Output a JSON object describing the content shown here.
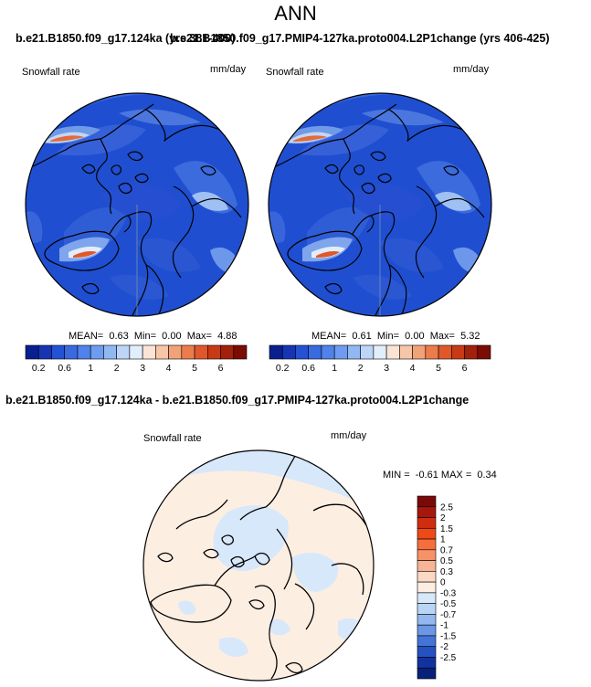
{
  "main_title": "ANN",
  "panel_titles": {
    "left": "b.e21.B1850.f09_g17.124ka (yrs 381-400)",
    "right": "b.e21.B1850.f09_g17.PMIP4-127ka.proto004.L2P1change (yrs 406-425)",
    "diff": "b.e21.B1850.f09_g17.124ka - b.e21.B1850.f09_g17.PMIP4-127ka.proto004.L2P1change"
  },
  "chart_data": [
    {
      "type": "heatmap",
      "projection": "north-polar-stereographic",
      "variable": "Snowfall rate",
      "units": "mm/day",
      "stats": {
        "mean_label": "MEAN=",
        "mean": "0.63",
        "min_label": "Min=",
        "min": "0.00",
        "max_label": "Max=",
        "max": "4.88"
      },
      "colorbar": {
        "levels": [
          0.1,
          0.2,
          0.4,
          0.6,
          0.8,
          1,
          1.5,
          2,
          2.5,
          3,
          3.5,
          4,
          4.5,
          5,
          5.5,
          6
        ],
        "tick_labels": [
          "0.2",
          "0.6",
          "1",
          "2",
          "3",
          "4",
          "5",
          "6"
        ],
        "colors": [
          "#0a1f8f",
          "#1535b5",
          "#2452d4",
          "#3a6ae0",
          "#4f82ea",
          "#6d9cf0",
          "#92b8f4",
          "#bcd5f8",
          "#e2eefb",
          "#fbe4d6",
          "#f7c6a8",
          "#f2a178",
          "#ec7c4c",
          "#e0582a",
          "#c83a14",
          "#a3200a",
          "#7a0c04"
        ]
      }
    },
    {
      "type": "heatmap",
      "projection": "north-polar-stereographic",
      "variable": "Snowfall rate",
      "units": "mm/day",
      "stats": {
        "mean_label": "MEAN=",
        "mean": "0.61",
        "min_label": "Min=",
        "min": "0.00",
        "max_label": "Max=",
        "max": "5.32"
      },
      "colorbar": {
        "levels": [
          0.1,
          0.2,
          0.4,
          0.6,
          0.8,
          1,
          1.5,
          2,
          2.5,
          3,
          3.5,
          4,
          4.5,
          5,
          5.5,
          6
        ],
        "tick_labels": [
          "0.2",
          "0.6",
          "1",
          "2",
          "3",
          "4",
          "5",
          "6"
        ],
        "colors": [
          "#0a1f8f",
          "#1535b5",
          "#2452d4",
          "#3a6ae0",
          "#4f82ea",
          "#6d9cf0",
          "#92b8f4",
          "#bcd5f8",
          "#e2eefb",
          "#fbe4d6",
          "#f7c6a8",
          "#f2a178",
          "#ec7c4c",
          "#e0582a",
          "#c83a14",
          "#a3200a",
          "#7a0c04"
        ]
      }
    },
    {
      "type": "heatmap",
      "projection": "north-polar-stereographic",
      "variable": "Snowfall rate",
      "units": "mm/day",
      "stats": {
        "min_label": "MIN =",
        "min": "-0.61",
        "max_label": "MAX =",
        "max": "0.34"
      },
      "colorbar": {
        "levels": [
          -2.5,
          -2,
          -1.5,
          -1,
          -0.7,
          -0.5,
          -0.3,
          0,
          0.3,
          0.5,
          0.7,
          1,
          1.5,
          2,
          2.5
        ],
        "tick_labels": [
          "2.5",
          "2",
          "1.5",
          "1",
          "0.7",
          "0.5",
          "0.3",
          "0",
          "-0.3",
          "-0.5",
          "-0.7",
          "-1",
          "-1.5",
          "-2",
          "-2.5"
        ],
        "colors": [
          "#7a0a0a",
          "#a8170c",
          "#cf2d10",
          "#ee4a18",
          "#f56e3c",
          "#f79268",
          "#f8b496",
          "#fbd8c4",
          "#fdeee2",
          "#d7e8fa",
          "#b9d5f6",
          "#93b8ef",
          "#6b97e6",
          "#4474d8",
          "#2651c2",
          "#12339f",
          "#07207a"
        ]
      }
    }
  ]
}
